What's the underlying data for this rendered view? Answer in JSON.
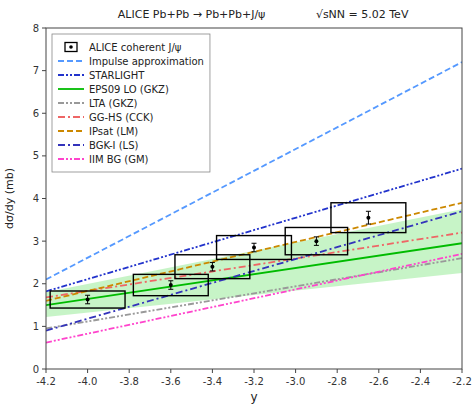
{
  "chart_data": {
    "type": "line",
    "title": "ALICE Pb+Pb → Pb+Pb+J/ψ",
    "subtitle": "√sNN = 5.02 TeV",
    "x_label": "y",
    "y_label": "dσ/dy (mb)",
    "xlim": [
      -4.2,
      -2.2
    ],
    "ylim": [
      0,
      8
    ],
    "xticks": [
      -4.2,
      {
        "value": -4.0,
        "label": "-4.0"
      },
      -3.8,
      -3.6,
      -3.4,
      -3.2,
      {
        "value": -3.0,
        "label": "-3.0"
      },
      -2.8,
      -2.6,
      -2.4,
      -2.2
    ],
    "yticks": [
      0,
      1,
      2,
      3,
      4,
      5,
      6,
      7,
      8
    ],
    "grid": false,
    "legend": "upper left",
    "series": [
      {
        "name": "ALICE coherent J/ψ",
        "type": "scatter",
        "color": "black",
        "marker": "point",
        "x": [
          -4.0,
          -3.6,
          -3.4,
          -3.2,
          -2.9,
          -2.65
        ],
        "values": [
          1.63,
          1.97,
          2.4,
          2.85,
          3.0,
          3.55
        ],
        "stat_err": [
          0.1,
          0.1,
          0.1,
          0.1,
          0.1,
          0.15
        ],
        "sys_err_x": [
          0.18,
          0.18,
          0.18,
          0.18,
          0.15,
          0.18
        ],
        "sys_err_y": [
          0.2,
          0.25,
          0.28,
          0.28,
          0.32,
          0.35
        ]
      },
      {
        "name": "Impulse approximation",
        "type": "line",
        "color": "#5599ff",
        "line_style": "dashed",
        "x": [
          -4.2,
          -2.2
        ],
        "values": [
          2.1,
          7.2
        ]
      },
      {
        "name": "STARLIGHT",
        "type": "line",
        "color": "#2233cc",
        "line_style": "dashdotdot",
        "x": [
          -4.2,
          -2.2
        ],
        "values": [
          1.82,
          4.7
        ]
      },
      {
        "name": "EPS09 LO (GKZ)",
        "type": "line",
        "color": "#00bb00",
        "line_style": "solid",
        "x": [
          -4.2,
          -2.2
        ],
        "values": [
          1.5,
          2.95
        ]
      },
      {
        "name": "LTA (GKZ)",
        "type": "line",
        "color": "#999999",
        "line_style": "dashdotdot",
        "x": [
          -4.2,
          -2.2
        ],
        "values": [
          0.95,
          2.6
        ]
      },
      {
        "name": "GG-HS (CCK)",
        "type": "line",
        "color": "#ee6666",
        "line_style": "dashdot",
        "x": [
          -4.2,
          -2.2
        ],
        "values": [
          1.68,
          3.2
        ]
      },
      {
        "name": "IPsat (LM)",
        "type": "line",
        "color": "#cc8800",
        "line_style": "dashed",
        "x": [
          -4.2,
          -2.2
        ],
        "values": [
          1.6,
          3.9
        ]
      },
      {
        "name": "BGK-I (LS)",
        "type": "line",
        "color": "#3333bb",
        "line_style": "dashdot",
        "x": [
          -4.2,
          -2.2
        ],
        "values": [
          0.9,
          3.7
        ]
      },
      {
        "name": "IIM BG (GM)",
        "type": "line",
        "color": "#ff44cc",
        "line_style": "dashdotdot",
        "x": [
          -4.2,
          -2.2
        ],
        "values": [
          0.62,
          2.7
        ]
      },
      {
        "type": "band",
        "color": "#00cc00",
        "x": [
          -4.2,
          -2.2
        ],
        "values_low": [
          1.22,
          2.25
        ],
        "values_high": [
          1.8,
          3.75
        ]
      }
    ]
  }
}
